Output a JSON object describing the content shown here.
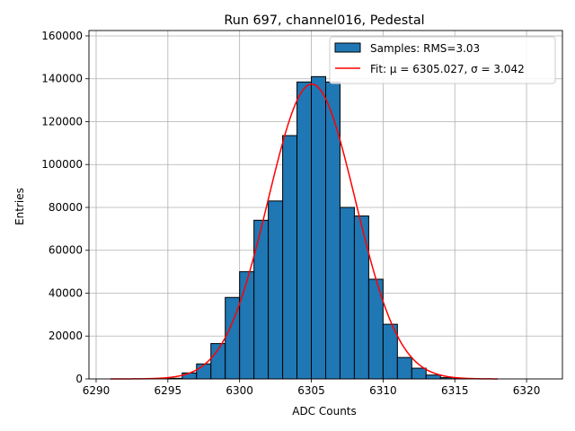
{
  "chart_data": {
    "type": "bar",
    "title": "Run 697, channel016, Pedestal",
    "xlabel": "ADC Counts",
    "ylabel": "Entries",
    "xlim": [
      6289.5,
      6322.5
    ],
    "ylim": [
      0,
      162500
    ],
    "xticks": [
      6290,
      6295,
      6300,
      6305,
      6310,
      6315,
      6320
    ],
    "yticks": [
      0,
      20000,
      40000,
      60000,
      80000,
      100000,
      120000,
      140000,
      160000
    ],
    "grid": true,
    "legend_position": "top-right",
    "histogram": {
      "name": "Samples: RMS=3.03",
      "bin_width": 1,
      "bin_left_edges": [
        6295,
        6296,
        6297,
        6298,
        6299,
        6300,
        6301,
        6302,
        6303,
        6304,
        6305,
        6306,
        6307,
        6308,
        6309,
        6310,
        6311,
        6312,
        6313,
        6314,
        6315
      ],
      "values": [
        300,
        2800,
        7000,
        16500,
        38000,
        50000,
        74000,
        83000,
        113500,
        138500,
        141000,
        138500,
        80000,
        76000,
        46500,
        25500,
        10000,
        5000,
        1800,
        600,
        200
      ],
      "color": "#1f77b4",
      "edge_color": "#000000"
    },
    "fit": {
      "name": "Fit: μ = 6305.027, σ = 3.042",
      "mu": 6305.027,
      "sigma": 3.042,
      "amplitude": 137500,
      "x_range": [
        6291,
        6318
      ],
      "color": "#ff0000"
    }
  }
}
